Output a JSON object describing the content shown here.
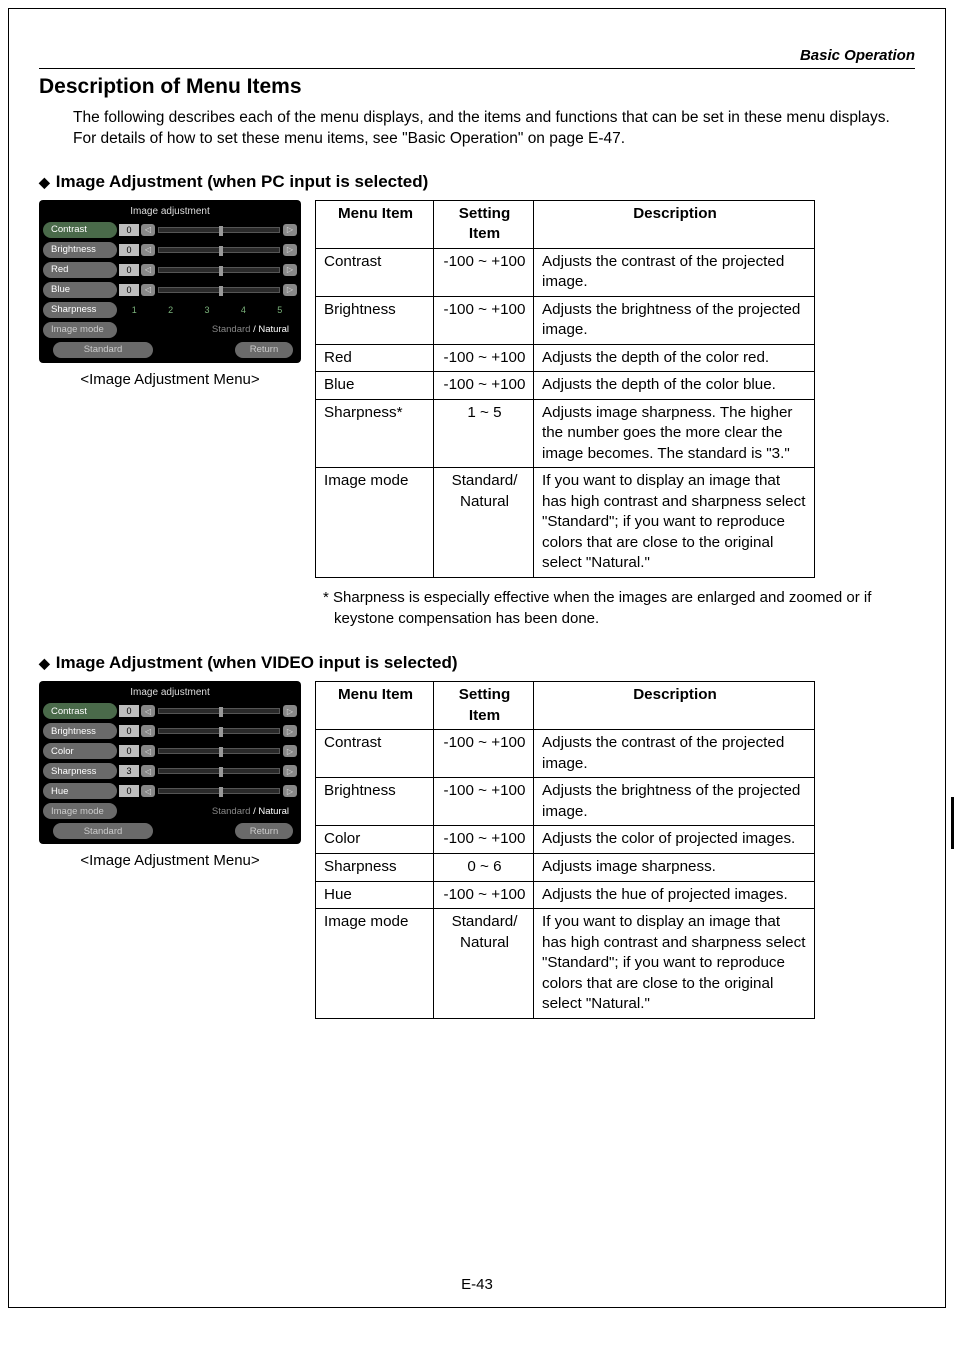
{
  "header_label": "Basic Operation",
  "h1": "Description of Menu Items",
  "intro": "The following describes each of the menu displays, and the items and functions that can be set in these menu displays. For details of how to set these menu items, see \"Basic Operation\" on page E-47.",
  "page_num": "E-43",
  "pc": {
    "heading": "Image Adjustment (when PC input is selected)",
    "caption": "<Image Adjustment Menu>",
    "osd": {
      "title": "Image adjustment",
      "rows": [
        {
          "label": "Contrast",
          "value": "0",
          "thumb_pct": 50,
          "selected": true
        },
        {
          "label": "Brightness",
          "value": "0",
          "thumb_pct": 50
        },
        {
          "label": "Red",
          "value": "0",
          "thumb_pct": 50
        },
        {
          "label": "Blue",
          "value": "0",
          "thumb_pct": 50
        }
      ],
      "sharpness": {
        "label": "Sharpness",
        "steps": [
          "1",
          "2",
          "3",
          "4",
          "5"
        ]
      },
      "mode": {
        "label": "Image mode",
        "dim": "Standard",
        "sep": " / ",
        "bright": "Natural"
      },
      "bottom": {
        "standard": "Standard",
        "return": "Return"
      }
    },
    "table": {
      "headers": [
        "Menu Item",
        "Setting Item",
        "Description"
      ],
      "rows": [
        {
          "item": "Contrast",
          "setting": "-100 ~ +100",
          "desc": "Adjusts the contrast of the projected image."
        },
        {
          "item": "Brightness",
          "setting": "-100 ~ +100",
          "desc": "Adjusts the brightness of the projected image."
        },
        {
          "item": "Red",
          "setting": "-100 ~ +100",
          "desc": "Adjusts the depth of the color red."
        },
        {
          "item": "Blue",
          "setting": "-100 ~ +100",
          "desc": "Adjusts the depth of the color blue."
        },
        {
          "item": "Sharpness*",
          "setting": "1 ~ 5",
          "desc": "Adjusts image sharpness. The higher the number goes the more clear the image becomes. The standard is \"3.\""
        },
        {
          "item": "Image mode",
          "setting": "Standard/\nNatural",
          "desc": "If you want to display an image that has high contrast and sharpness select \"Standard\"; if you want to reproduce colors that are close to the original select \"Natural.\""
        }
      ]
    },
    "footnote": "* Sharpness is especially effective when the images are enlarged and zoomed or if keystone compensation has been done."
  },
  "video": {
    "heading": "Image Adjustment (when VIDEO input is selected)",
    "caption": "<Image Adjustment Menu>",
    "osd": {
      "title": "Image adjustment",
      "rows": [
        {
          "label": "Contrast",
          "value": "0",
          "thumb_pct": 50,
          "selected": true
        },
        {
          "label": "Brightness",
          "value": "0",
          "thumb_pct": 50
        },
        {
          "label": "Color",
          "value": "0",
          "thumb_pct": 50
        },
        {
          "label": "Sharpness",
          "value": "3",
          "thumb_pct": 50
        },
        {
          "label": "Hue",
          "value": "0",
          "thumb_pct": 50
        }
      ],
      "mode": {
        "label": "Image mode",
        "dim": "Standard",
        "sep": " / ",
        "bright": "Natural"
      },
      "bottom": {
        "standard": "Standard",
        "return": "Return"
      }
    },
    "table": {
      "headers": [
        "Menu Item",
        "Setting Item",
        "Description"
      ],
      "rows": [
        {
          "item": "Contrast",
          "setting": "-100 ~ +100",
          "desc": "Adjusts the contrast of the projected image."
        },
        {
          "item": "Brightness",
          "setting": "-100 ~ +100",
          "desc": "Adjusts the brightness of the projected image."
        },
        {
          "item": "Color",
          "setting": "-100 ~ +100",
          "desc": "Adjusts the color of projected images."
        },
        {
          "item": "Sharpness",
          "setting": "0 ~ 6",
          "desc": "Adjusts image sharpness."
        },
        {
          "item": "Hue",
          "setting": "-100 ~ +100",
          "desc": "Adjusts the hue of projected images."
        },
        {
          "item": "Image mode",
          "setting": "Standard/\nNatural",
          "desc": "If you want to display an image that has high contrast and sharpness select \"Standard\"; if you want to reproduce colors that are close to the original select \"Natural.\""
        }
      ]
    }
  },
  "colors": {
    "page_border": "#000000",
    "osd_bg": "#000000",
    "pill_bg": "#6a6a6a",
    "pill_sel_bg": "#4a6a4a",
    "val_bg": "#bdbdbd",
    "arrow_bg": "#888888",
    "track_bg": "#2a2a2a"
  }
}
